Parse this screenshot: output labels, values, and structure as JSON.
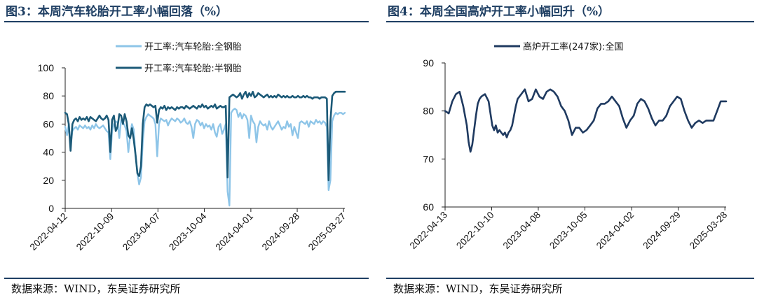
{
  "charts": [
    {
      "title": "图3：本周汽车轮胎开工率小幅回落（%）",
      "source": "数据来源：WIND，东吴证券研究所"
    },
    {
      "title": "图4：本周全国高炉开工率小幅回升（%）",
      "source": "数据来源：WIND，东吴证券研究所"
    }
  ],
  "colors": {
    "light": "#8ec5e8",
    "dark": "#1c5a78",
    "navy": "#1f3a60",
    "rule": "#1f3f63"
  },
  "chart_data": [
    {
      "type": "line",
      "title": "图3：本周汽车轮胎开工率小幅回落（%）",
      "ylim": [
        0,
        100
      ],
      "yticks": [
        0,
        20,
        40,
        60,
        80,
        100
      ],
      "xlim": [
        0,
        155
      ],
      "xticks": [
        {
          "label": "2022-04-12",
          "t": 0
        },
        {
          "label": "2022-10-09",
          "t": 25.7
        },
        {
          "label": "2023-04-07",
          "t": 51.4
        },
        {
          "label": "2023-10-04",
          "t": 77.1
        },
        {
          "label": "2024-04-01",
          "t": 102.9
        },
        {
          "label": "2024-09-28",
          "t": 128.6
        },
        {
          "label": "2025-03-27",
          "t": 154.3
        }
      ],
      "series": [
        {
          "name": "开工率:汽车轮胎:全钢胎",
          "color": "light",
          "x": [
            0,
            1,
            2,
            3,
            4,
            5,
            6,
            7,
            8,
            9,
            10,
            11,
            12,
            13,
            14,
            15,
            16,
            17,
            18,
            19,
            20,
            21,
            22,
            23,
            24,
            25,
            26,
            27,
            28,
            29,
            30,
            31,
            32,
            33,
            34,
            35,
            36,
            37,
            38,
            39,
            40,
            41,
            42,
            43,
            44,
            45,
            46,
            47,
            48,
            49,
            50,
            51,
            52,
            53,
            54,
            55,
            56,
            57,
            58,
            59,
            60,
            61,
            62,
            63,
            64,
            65,
            66,
            67,
            68,
            69,
            70,
            71,
            72,
            73,
            74,
            75,
            76,
            77,
            78,
            79,
            80,
            81,
            82,
            83,
            84,
            85,
            86,
            87,
            88,
            89,
            90,
            91,
            92,
            93,
            94,
            95,
            96,
            97,
            98,
            99,
            100,
            101,
            102,
            103,
            104,
            105,
            106,
            107,
            108,
            109,
            110,
            111,
            112,
            113,
            114,
            115,
            116,
            117,
            118,
            119,
            120,
            121,
            122,
            123,
            124,
            125,
            126,
            127,
            128,
            129,
            130,
            131,
            132,
            133,
            134,
            135,
            136,
            137,
            138,
            139,
            140,
            141,
            142,
            143,
            144,
            145,
            146,
            147,
            148,
            149,
            150,
            151,
            152,
            153,
            154,
            155
          ],
          "values": [
            58,
            52,
            60,
            45,
            55,
            57,
            58,
            56,
            59,
            58,
            57,
            59,
            57,
            58,
            56,
            59,
            57,
            60,
            58,
            57,
            58,
            59,
            57,
            55,
            54,
            35,
            55,
            60,
            62,
            61,
            50,
            63,
            61,
            59,
            55,
            40,
            52,
            60,
            56,
            38,
            25,
            17,
            22,
            47,
            62,
            65,
            67,
            66,
            65,
            64,
            60,
            37,
            60,
            64,
            63,
            62,
            63,
            59,
            62,
            64,
            63,
            62,
            64,
            63,
            61,
            62,
            64,
            61,
            60,
            62,
            58,
            50,
            60,
            63,
            62,
            59,
            61,
            57,
            60,
            58,
            59,
            56,
            60,
            54,
            51,
            58,
            60,
            53,
            56,
            60,
            12,
            2,
            68,
            70,
            71,
            70,
            65,
            68,
            64,
            67,
            66,
            63,
            50,
            66,
            62,
            60,
            47,
            58,
            62,
            60,
            59,
            60,
            56,
            62,
            58,
            56,
            58,
            60,
            62,
            59,
            56,
            58,
            57,
            62,
            58,
            60,
            52,
            58,
            54,
            50,
            61,
            62,
            61,
            60,
            62,
            58,
            62,
            61,
            60,
            63,
            61,
            62,
            60,
            62,
            61,
            58,
            13,
            20,
            62,
            66,
            68,
            67,
            68,
            68,
            67,
            68
          ]
        },
        {
          "name": "开工率:汽车轮胎:半钢胎",
          "color": "dark",
          "x": [
            0,
            1,
            2,
            3,
            4,
            5,
            6,
            7,
            8,
            9,
            10,
            11,
            12,
            13,
            14,
            15,
            16,
            17,
            18,
            19,
            20,
            21,
            22,
            23,
            24,
            25,
            26,
            27,
            28,
            29,
            30,
            31,
            32,
            33,
            34,
            35,
            36,
            37,
            38,
            39,
            40,
            41,
            42,
            43,
            44,
            45,
            46,
            47,
            48,
            49,
            50,
            51,
            52,
            53,
            54,
            55,
            56,
            57,
            58,
            59,
            60,
            61,
            62,
            63,
            64,
            65,
            66,
            67,
            68,
            69,
            70,
            71,
            72,
            73,
            74,
            75,
            76,
            77,
            78,
            79,
            80,
            81,
            82,
            83,
            84,
            85,
            86,
            87,
            88,
            89,
            90,
            91,
            92,
            93,
            94,
            95,
            96,
            97,
            98,
            99,
            100,
            101,
            102,
            103,
            104,
            105,
            106,
            107,
            108,
            109,
            110,
            111,
            112,
            113,
            114,
            115,
            116,
            117,
            118,
            119,
            120,
            121,
            122,
            123,
            124,
            125,
            126,
            127,
            128,
            129,
            130,
            131,
            132,
            133,
            134,
            135,
            136,
            137,
            138,
            139,
            140,
            141,
            142,
            143,
            144,
            145,
            146,
            147,
            148,
            149,
            150,
            151,
            152,
            153,
            154,
            155
          ],
          "values": [
            68,
            67,
            60,
            41,
            60,
            63,
            64,
            62,
            65,
            63,
            64,
            63,
            65,
            62,
            65,
            64,
            63,
            62,
            64,
            66,
            64,
            63,
            64,
            66,
            63,
            40,
            63,
            66,
            55,
            58,
            67,
            66,
            60,
            67,
            62,
            52,
            50,
            57,
            49,
            38,
            25,
            23,
            30,
            60,
            72,
            74,
            73,
            74,
            73,
            72,
            73,
            61,
            70,
            72,
            71,
            73,
            70,
            72,
            71,
            72,
            71,
            70,
            72,
            71,
            72,
            72,
            71,
            73,
            72,
            71,
            72,
            73,
            72,
            71,
            73,
            72,
            74,
            72,
            73,
            71,
            72,
            73,
            72,
            74,
            71,
            72,
            73,
            72,
            72,
            73,
            22,
            79,
            80,
            81,
            80,
            79,
            80,
            82,
            78,
            81,
            83,
            79,
            82,
            80,
            83,
            79,
            80,
            82,
            81,
            80,
            79,
            80,
            81,
            79,
            80,
            79,
            80,
            79,
            81,
            80,
            79,
            80,
            79,
            80,
            79,
            79,
            80,
            79,
            79,
            80,
            79,
            79,
            80,
            79,
            80,
            79,
            79,
            78,
            79,
            79,
            79,
            78,
            79,
            79,
            79,
            78,
            20,
            62,
            80,
            82,
            83,
            83,
            83,
            83,
            83,
            83
          ]
        }
      ]
    },
    {
      "type": "line",
      "title": "图4：本周全国高炉开工率小幅回升（%）",
      "ylim": [
        60,
        90
      ],
      "yticks": [
        60,
        70,
        80,
        90
      ],
      "xlim": [
        0,
        155
      ],
      "xticks": [
        {
          "label": "2022-04-13",
          "t": 0
        },
        {
          "label": "2022-10-10",
          "t": 25.7
        },
        {
          "label": "2023-04-08",
          "t": 51.4
        },
        {
          "label": "2023-10-05",
          "t": 77.1
        },
        {
          "label": "2024-04-02",
          "t": 102.9
        },
        {
          "label": "2024-09-29",
          "t": 128.6
        },
        {
          "label": "2025-03-28",
          "t": 154.3
        }
      ],
      "series": [
        {
          "name": "高炉开工率(247家):全国",
          "color": "navy",
          "x": [
            0,
            2,
            4,
            6,
            8,
            10,
            12,
            13,
            14,
            15,
            16,
            17,
            18,
            19,
            20,
            22,
            24,
            25,
            26,
            27,
            28,
            29,
            30,
            31,
            32,
            33,
            34,
            35,
            36,
            37,
            38,
            39,
            40,
            42,
            44,
            46,
            48,
            50,
            52,
            54,
            56,
            58,
            60,
            62,
            64,
            66,
            68,
            70,
            72,
            74,
            76,
            78,
            80,
            82,
            84,
            86,
            88,
            90,
            92,
            94,
            96,
            98,
            100,
            102,
            104,
            106,
            108,
            110,
            112,
            114,
            116,
            118,
            120,
            122,
            124,
            126,
            128,
            130,
            132,
            134,
            136,
            138,
            140,
            142,
            144,
            146,
            148,
            150,
            152,
            154,
            155
          ],
          "values": [
            80,
            79.5,
            82,
            83.5,
            84,
            81,
            77,
            73.5,
            71.5,
            73,
            76,
            79,
            81.5,
            82.5,
            83,
            83.5,
            82,
            79.5,
            77,
            76,
            77,
            75.5,
            76,
            75.5,
            75,
            75.5,
            74.5,
            75.5,
            76,
            77,
            79,
            81,
            82.5,
            83.5,
            84.5,
            82,
            82.5,
            84.5,
            83,
            82.5,
            84,
            84.5,
            84,
            83,
            81,
            80,
            78,
            75,
            76.5,
            76.5,
            75.5,
            76,
            77,
            78,
            80.5,
            81.5,
            81.5,
            82,
            83,
            82,
            81,
            78.5,
            76.5,
            78,
            79,
            81.5,
            82.5,
            82,
            80.5,
            78.5,
            77,
            78,
            78,
            79,
            81,
            82,
            83,
            82.5,
            80,
            78,
            76.5,
            77.5,
            78,
            77.5,
            78,
            78,
            78,
            80,
            82,
            82,
            82
          ]
        }
      ]
    }
  ]
}
